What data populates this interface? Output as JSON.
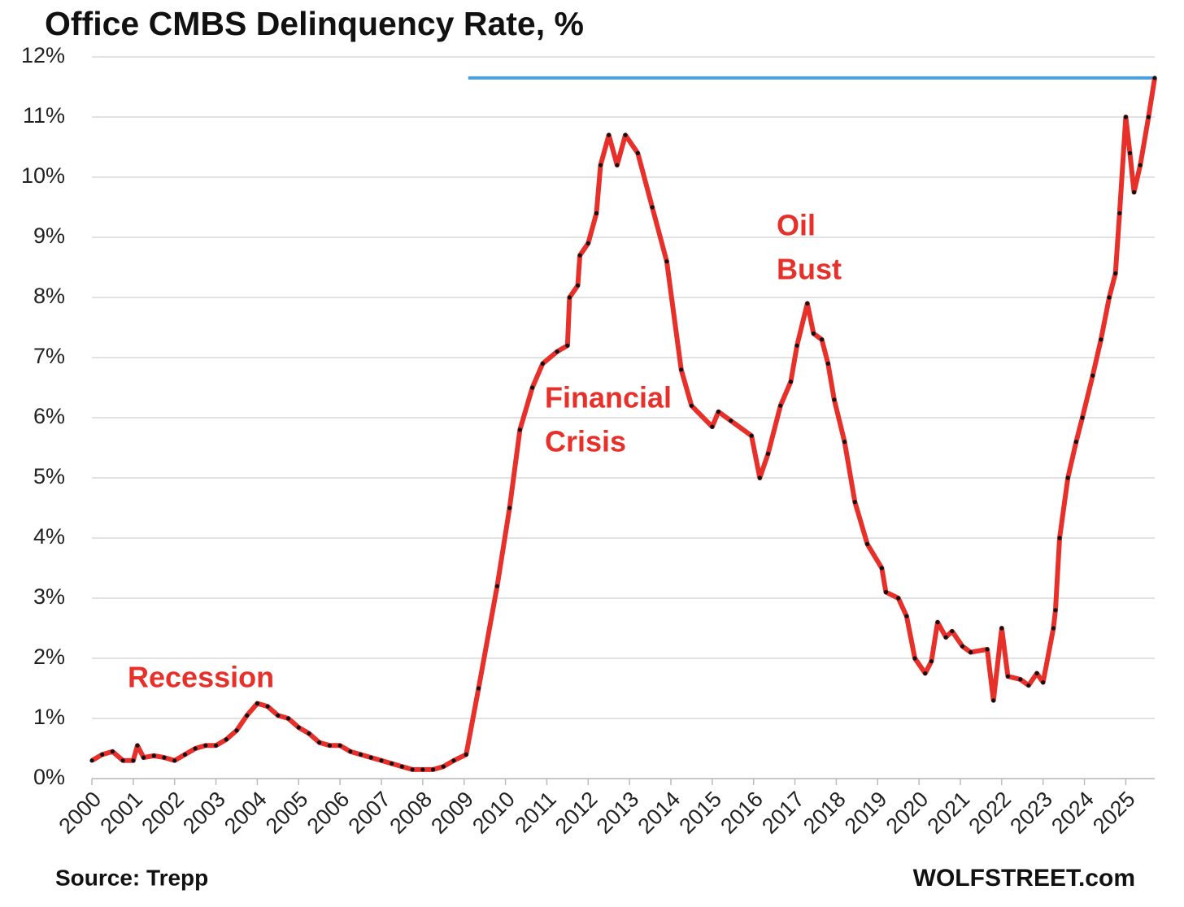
{
  "chart_data": {
    "type": "line",
    "title": "Office CMBS Delinquency Rate, %",
    "source": "Source: Trepp",
    "credit": "WOLFSTREET.com",
    "x": [
      2000,
      2000.25,
      2000.5,
      2000.75,
      2001,
      2001.1,
      2001.25,
      2001.5,
      2001.75,
      2002,
      2002.25,
      2002.5,
      2002.75,
      2003,
      2003.25,
      2003.5,
      2003.75,
      2004,
      2004.25,
      2004.5,
      2004.75,
      2005,
      2005.25,
      2005.5,
      2005.75,
      2006,
      2006.25,
      2006.5,
      2006.75,
      2007,
      2007.25,
      2007.5,
      2007.75,
      2008,
      2008.25,
      2008.5,
      2008.75,
      2009.05,
      2009.35,
      2009.8,
      2010.1,
      2010.35,
      2010.65,
      2010.9,
      2011.25,
      2011.5,
      2011.55,
      2011.75,
      2011.8,
      2012,
      2012.2,
      2012.3,
      2012.5,
      2012.7,
      2012.9,
      2013.2,
      2013.55,
      2013.9,
      2014.25,
      2014.5,
      2015,
      2015.15,
      2015.45,
      2015.95,
      2016.15,
      2016.35,
      2016.65,
      2016.9,
      2017.05,
      2017.3,
      2017.45,
      2017.65,
      2017.8,
      2017.95,
      2018.2,
      2018.45,
      2018.75,
      2019.1,
      2019.2,
      2019.5,
      2019.7,
      2019.9,
      2020.15,
      2020.3,
      2020.45,
      2020.65,
      2020.8,
      2021.05,
      2021.25,
      2021.65,
      2021.8,
      2022,
      2022.15,
      2022.45,
      2022.65,
      2022.85,
      2023,
      2023.25,
      2023.3,
      2023.4,
      2023.6,
      2023.8,
      2023.95,
      2024.2,
      2024.4,
      2024.6,
      2024.75,
      2024.85,
      2025,
      2025.1,
      2025.2,
      2025.35,
      2025.55,
      2025.7
    ],
    "series": [
      {
        "name": "Office CMBS Delinquency Rate",
        "color": "#e8302a",
        "marker_color": "#111111",
        "values": [
          0.3,
          0.4,
          0.45,
          0.3,
          0.3,
          0.55,
          0.35,
          0.38,
          0.35,
          0.3,
          0.4,
          0.5,
          0.55,
          0.55,
          0.65,
          0.8,
          1.05,
          1.25,
          1.2,
          1.05,
          1.0,
          0.85,
          0.75,
          0.6,
          0.55,
          0.55,
          0.45,
          0.4,
          0.35,
          0.3,
          0.25,
          0.2,
          0.15,
          0.15,
          0.15,
          0.2,
          0.3,
          0.4,
          1.5,
          3.2,
          4.5,
          5.8,
          6.5,
          6.9,
          7.1,
          7.2,
          8.0,
          8.2,
          8.7,
          8.9,
          9.4,
          10.2,
          10.7,
          10.2,
          10.7,
          10.4,
          9.5,
          8.6,
          6.8,
          6.2,
          5.85,
          6.1,
          5.95,
          5.7,
          5.0,
          5.4,
          6.2,
          6.6,
          7.2,
          7.9,
          7.4,
          7.3,
          6.9,
          6.3,
          5.6,
          4.6,
          3.9,
          3.5,
          3.1,
          3.0,
          2.7,
          2.0,
          1.75,
          1.95,
          2.6,
          2.35,
          2.45,
          2.2,
          2.1,
          2.15,
          1.3,
          2.5,
          1.7,
          1.65,
          1.55,
          1.75,
          1.6,
          2.5,
          2.8,
          4.0,
          5.0,
          5.6,
          6.0,
          6.7,
          7.3,
          8.0,
          8.4,
          9.4,
          11.0,
          10.4,
          9.75,
          10.2,
          11.0,
          11.65
        ]
      }
    ],
    "ref_line": {
      "value": 11.65,
      "x": [
        2009.1,
        2025.7
      ],
      "color": "#4a9fe0"
    },
    "annotations": [
      {
        "text": "Recession"
      },
      {
        "text": "Financial"
      },
      {
        "text": "Crisis"
      },
      {
        "text": "Oil"
      },
      {
        "text": "Bust"
      }
    ],
    "xlim": [
      2000,
      2025.7
    ],
    "ylim": [
      0,
      12
    ],
    "xticks": [
      2000,
      2001,
      2002,
      2003,
      2004,
      2005,
      2006,
      2007,
      2008,
      2009,
      2010,
      2011,
      2012,
      2013,
      2014,
      2015,
      2016,
      2017,
      2018,
      2019,
      2020,
      2021,
      2022,
      2023,
      2024,
      2025
    ],
    "yticks": [
      {
        "value": 0,
        "label": "0%"
      },
      {
        "value": 1,
        "label": "1%"
      },
      {
        "value": 2,
        "label": "2%"
      },
      {
        "value": 3,
        "label": "3%"
      },
      {
        "value": 4,
        "label": "4%"
      },
      {
        "value": 5,
        "label": "5%"
      },
      {
        "value": 6,
        "label": "6%"
      },
      {
        "value": 7,
        "label": "7%"
      },
      {
        "value": 8,
        "label": "8%"
      },
      {
        "value": 9,
        "label": "9%"
      },
      {
        "value": 10,
        "label": "10%"
      },
      {
        "value": 11,
        "label": "11%"
      },
      {
        "value": 12,
        "label": "12%"
      }
    ],
    "grid": true
  }
}
